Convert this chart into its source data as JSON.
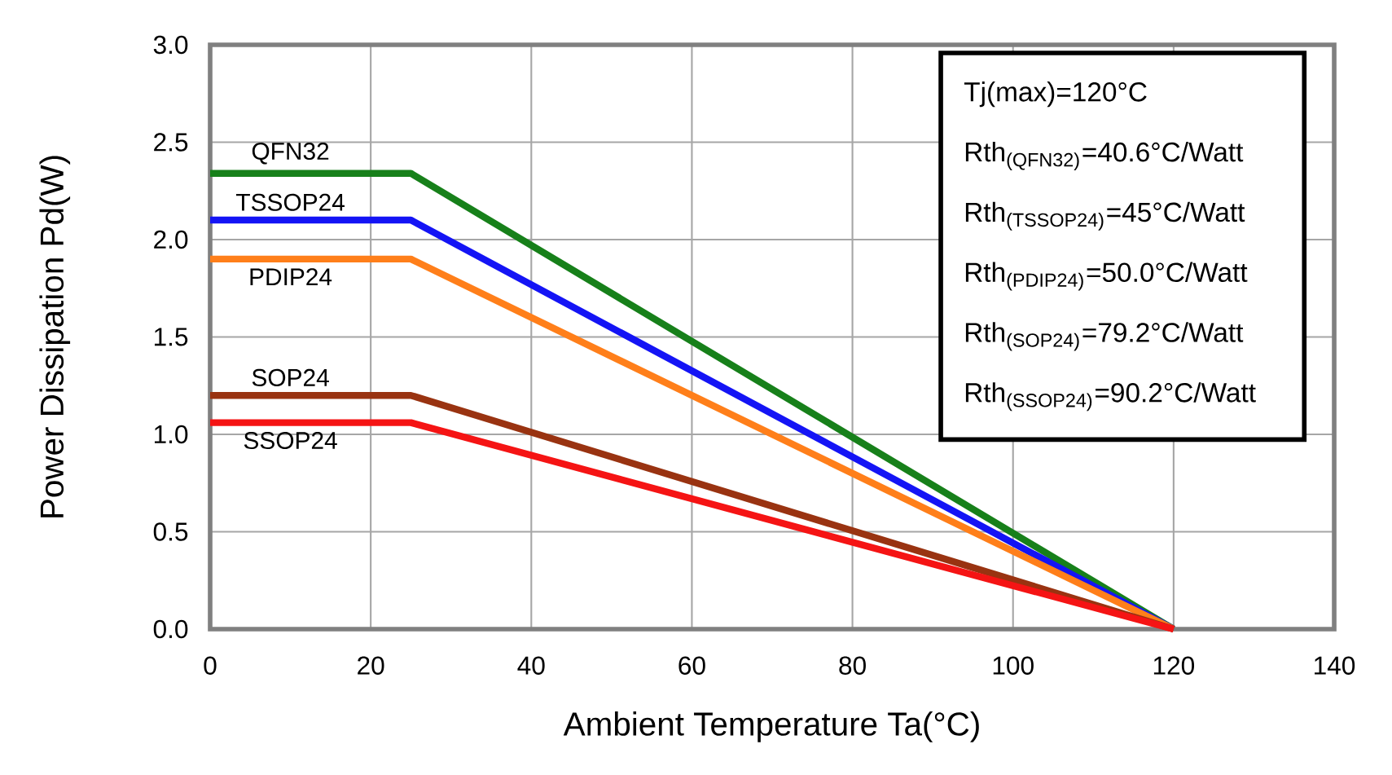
{
  "chart_data": {
    "type": "line",
    "xlabel": "Ambient Temperature Ta(°C)",
    "ylabel": "Power Dissipation Pd(W)",
    "x": [
      0,
      25,
      120
    ],
    "series": [
      {
        "name": "QFN32",
        "color": "#17801a",
        "values": [
          2.34,
          2.34,
          0
        ]
      },
      {
        "name": "TSSOP24",
        "color": "#1414f5",
        "values": [
          2.1,
          2.1,
          0
        ]
      },
      {
        "name": "PDIP24",
        "color": "#ff7f1a",
        "values": [
          1.9,
          1.9,
          0
        ]
      },
      {
        "name": "SOP24",
        "color": "#993311",
        "values": [
          1.2,
          1.2,
          0
        ]
      },
      {
        "name": "SSOP24",
        "color": "#f51414",
        "values": [
          1.06,
          1.06,
          0
        ]
      }
    ],
    "xlim": [
      0,
      140
    ],
    "xticks": [
      0,
      20,
      40,
      60,
      80,
      100,
      120,
      140
    ],
    "ylim": [
      0,
      3
    ],
    "yticks": [
      {
        "value": 0,
        "label": "0.0"
      },
      {
        "value": 0.5,
        "label": "0.5"
      },
      {
        "value": 1,
        "label": "1.0"
      },
      {
        "value": 1.5,
        "label": "1.5"
      },
      {
        "value": 2,
        "label": "2.0"
      },
      {
        "value": 2.5,
        "label": "2.5"
      },
      {
        "value": 3,
        "label": "3.0"
      }
    ],
    "grid": true,
    "marker": "none",
    "line_style": "solid",
    "annotations": [
      "Tj(max)=120°C",
      "Rth$_{(QFN32)}$=40.6°C/Watt",
      "Rth$_{(TSSOP24)}$=45°C/Watt",
      "Rth$_{(PDIP24)}$=50.0°C/Watt",
      "Rth$_{(SOP24)}$=79.2°C/Watt",
      "Rth$_{(SSOP24)}$=90.2°C/Watt"
    ]
  }
}
